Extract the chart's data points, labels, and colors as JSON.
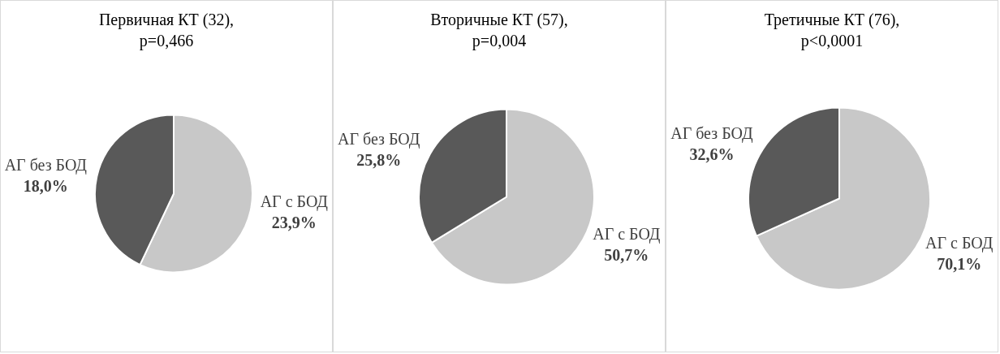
{
  "chart_data": [
    {
      "type": "pie",
      "title": "Первичная КТ (32), p=0,466",
      "categories": [
        "АГ с БОД",
        "АГ без БОД"
      ],
      "values": [
        23.9,
        18.0
      ],
      "value_labels": [
        "23,9%",
        "18,0%"
      ],
      "colors": [
        "#c8c8c8",
        "#595959"
      ],
      "legend": false
    },
    {
      "type": "pie",
      "title": "Вторичные КТ (57), p=0,004",
      "categories": [
        "АГ с БОД",
        "АГ без БОД"
      ],
      "values": [
        50.7,
        25.8
      ],
      "value_labels": [
        "50,7%",
        "25,8%"
      ],
      "colors": [
        "#c8c8c8",
        "#595959"
      ],
      "legend": false
    },
    {
      "type": "pie",
      "title": "Третичные КТ (76), p<0,0001",
      "categories": [
        "АГ с БОД",
        "АГ без БОД"
      ],
      "values": [
        70.1,
        32.6
      ],
      "value_labels": [
        "70,1%",
        "32,6%"
      ],
      "colors": [
        "#c8c8c8",
        "#595959"
      ],
      "legend": false
    }
  ]
}
